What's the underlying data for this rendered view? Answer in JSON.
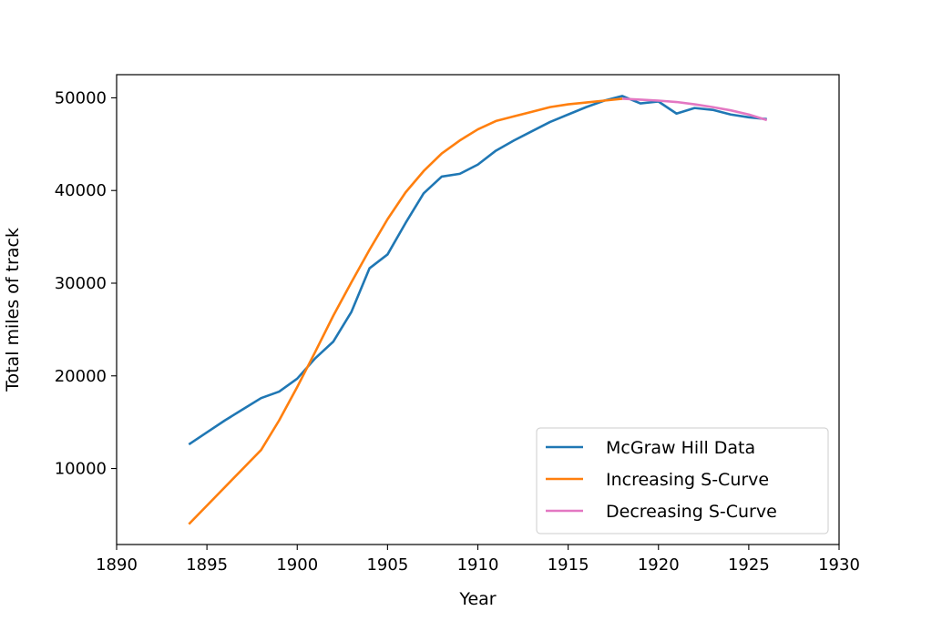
{
  "chart_data": {
    "type": "line",
    "title": "",
    "xlabel": "Year",
    "ylabel": "Total miles of track",
    "xlim": [
      1890,
      1930
    ],
    "ylim": [
      1800,
      52500
    ],
    "xticks": [
      1890,
      1895,
      1900,
      1905,
      1910,
      1915,
      1920,
      1925,
      1930
    ],
    "yticks": [
      10000,
      20000,
      30000,
      40000,
      50000
    ],
    "grid": false,
    "legend_position": "lower-right",
    "series": [
      {
        "name": "McGraw Hill Data",
        "color": "#1f77b4",
        "x": [
          1894,
          1895,
          1896,
          1897,
          1898,
          1899,
          1900,
          1901,
          1902,
          1903,
          1904,
          1905,
          1906,
          1907,
          1908,
          1909,
          1910,
          1911,
          1912,
          1913,
          1914,
          1915,
          1916,
          1917,
          1918,
          1919,
          1920,
          1921,
          1922,
          1923,
          1924,
          1925,
          1926
        ],
        "y": [
          12600,
          13900,
          15200,
          16400,
          17600,
          18300,
          19700,
          21900,
          23700,
          26900,
          31600,
          33100,
          36500,
          39700,
          41500,
          41800,
          42800,
          44300,
          45400,
          46400,
          47400,
          48200,
          49000,
          49700,
          50200,
          49400,
          49600,
          48300,
          48900,
          48700,
          48200,
          47900,
          47700
        ]
      },
      {
        "name": "Increasing S-Curve",
        "color": "#ff7f0e",
        "x": [
          1894,
          1898,
          1899,
          1900,
          1901,
          1902,
          1903,
          1904,
          1905,
          1906,
          1907,
          1908,
          1909,
          1910,
          1911,
          1912,
          1913,
          1914,
          1915,
          1916,
          1917,
          1918
        ],
        "y": [
          4000,
          12000,
          15200,
          18800,
          22600,
          26500,
          30100,
          33600,
          36900,
          39800,
          42100,
          44000,
          45400,
          46600,
          47500,
          48000,
          48500,
          49000,
          49300,
          49500,
          49700,
          49900
        ]
      },
      {
        "name": "Decreasing S-Curve",
        "color": "#e377c2",
        "x": [
          1918,
          1919,
          1920,
          1921,
          1922,
          1923,
          1924,
          1925,
          1926
        ],
        "y": [
          49900,
          49800,
          49700,
          49550,
          49300,
          49000,
          48650,
          48200,
          47600
        ]
      }
    ]
  }
}
